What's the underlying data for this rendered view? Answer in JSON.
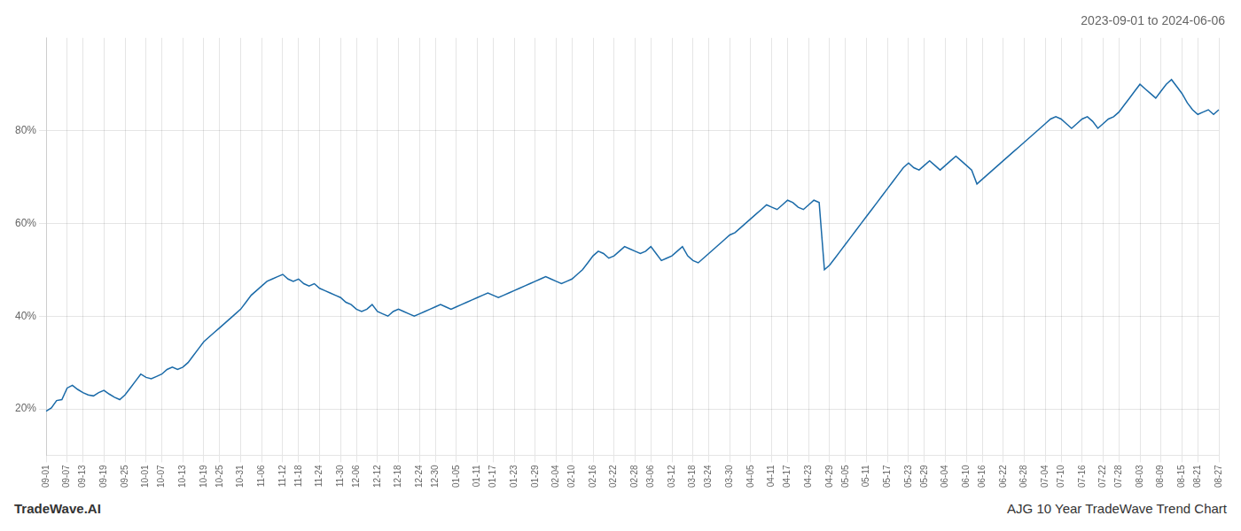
{
  "chart_data": {
    "type": "line",
    "title": "2023-09-01 to 2024-06-06",
    "annotations": [
      "TradeWave.AI",
      "AJG 10 Year TradeWave Trend Chart"
    ],
    "categories": [
      "09-01",
      null,
      null,
      null,
      "09-07",
      null,
      null,
      "09-13",
      null,
      null,
      null,
      "09-19",
      null,
      null,
      null,
      "09-25",
      null,
      null,
      null,
      "10-01",
      null,
      null,
      "10-07",
      null,
      null,
      null,
      "10-13",
      null,
      null,
      null,
      "10-19",
      null,
      null,
      "10-25",
      null,
      null,
      null,
      "10-31",
      null,
      null,
      null,
      "11-06",
      null,
      null,
      null,
      "11-12",
      null,
      null,
      "11-18",
      null,
      null,
      null,
      "11-24",
      null,
      null,
      null,
      "11-30",
      null,
      null,
      "12-06",
      null,
      null,
      null,
      "12-12",
      null,
      null,
      null,
      "12-18",
      null,
      null,
      null,
      "12-24",
      null,
      null,
      "12-30",
      null,
      null,
      null,
      "01-05",
      null,
      null,
      null,
      "01-11",
      null,
      null,
      "01-17",
      null,
      null,
      null,
      "01-23",
      null,
      null,
      null,
      "01-29",
      null,
      null,
      null,
      "02-04",
      null,
      null,
      "02-10",
      null,
      null,
      null,
      "02-16",
      null,
      null,
      null,
      "02-22",
      null,
      null,
      null,
      "02-28",
      null,
      null,
      "03-06",
      null,
      null,
      null,
      "03-12",
      null,
      null,
      null,
      "03-18",
      null,
      null,
      "03-24",
      null,
      null,
      null,
      "03-30",
      null,
      null,
      null,
      "04-05",
      null,
      null,
      null,
      "04-11",
      null,
      null,
      "04-17",
      null,
      null,
      null,
      "04-23",
      null,
      null,
      null,
      "04-29",
      null,
      null,
      "05-05",
      null,
      null,
      null,
      "05-11",
      null,
      null,
      null,
      "05-17",
      null,
      null,
      null,
      "05-23",
      null,
      null,
      "05-29",
      null,
      null,
      null,
      "06-04",
      null,
      null,
      null,
      "06-10",
      null,
      null,
      "06-16",
      null,
      null,
      null,
      "06-22",
      null,
      null,
      null,
      "06-28",
      null,
      null,
      null,
      "07-04",
      null,
      null,
      "07-10",
      null,
      null,
      null,
      "07-16",
      null,
      null,
      null,
      "07-22",
      null,
      null,
      "07-28",
      null,
      null,
      null,
      "08-03",
      null,
      null,
      null,
      "08-09",
      null,
      null,
      null,
      "08-15",
      null,
      null,
      "08-21",
      null,
      null,
      null,
      "08-27"
    ],
    "values": [
      19.5,
      20.2,
      21.8,
      22.0,
      24.5,
      25.1,
      24.2,
      23.5,
      23.0,
      22.8,
      23.5,
      24.0,
      23.2,
      22.5,
      22.0,
      23.0,
      24.5,
      26.0,
      27.5,
      26.8,
      26.5,
      27.0,
      27.5,
      28.5,
      29.0,
      28.5,
      29.0,
      30.0,
      31.5,
      33.0,
      34.5,
      35.5,
      36.5,
      37.5,
      38.5,
      39.5,
      40.5,
      41.5,
      43.0,
      44.5,
      45.5,
      46.5,
      47.5,
      48.0,
      48.5,
      49.0,
      48.0,
      47.5,
      48.0,
      47.0,
      46.5,
      47.0,
      46.0,
      45.5,
      45.0,
      44.5,
      44.0,
      43.0,
      42.5,
      41.5,
      41.0,
      41.5,
      42.5,
      41.0,
      40.5,
      40.0,
      41.0,
      41.5,
      41.0,
      40.5,
      40.0,
      40.5,
      41.0,
      41.5,
      42.0,
      42.5,
      42.0,
      41.5,
      42.0,
      42.5,
      43.0,
      43.5,
      44.0,
      44.5,
      45.0,
      44.5,
      44.0,
      44.5,
      45.0,
      45.5,
      46.0,
      46.5,
      47.0,
      47.5,
      48.0,
      48.5,
      48.0,
      47.5,
      47.0,
      47.5,
      48.0,
      49.0,
      50.0,
      51.5,
      53.0,
      54.0,
      53.5,
      52.5,
      53.0,
      54.0,
      55.0,
      54.5,
      54.0,
      53.5,
      54.0,
      55.0,
      53.5,
      52.0,
      52.5,
      53.0,
      54.0,
      55.0,
      53.0,
      52.0,
      51.5,
      52.5,
      53.5,
      54.5,
      55.5,
      56.5,
      57.5,
      58.0,
      59.0,
      60.0,
      61.0,
      62.0,
      63.0,
      64.0,
      63.5,
      63.0,
      64.0,
      65.0,
      64.5,
      63.5,
      63.0,
      64.0,
      65.0,
      64.5,
      50.0,
      51.0,
      52.5,
      54.0,
      55.5,
      57.0,
      58.5,
      60.0,
      61.5,
      63.0,
      64.5,
      66.0,
      67.5,
      69.0,
      70.5,
      72.0,
      73.0,
      72.0,
      71.5,
      72.5,
      73.5,
      72.5,
      71.5,
      72.5,
      73.5,
      74.5,
      73.5,
      72.5,
      71.5,
      68.5,
      69.5,
      70.5,
      71.5,
      72.5,
      73.5,
      74.5,
      75.5,
      76.5,
      77.5,
      78.5,
      79.5,
      80.5,
      81.5,
      82.5,
      83.0,
      82.5,
      81.5,
      80.5,
      81.5,
      82.5,
      83.0,
      82.0,
      80.5,
      81.5,
      82.5,
      83.0,
      84.0,
      85.5,
      87.0,
      88.5,
      90.0,
      89.0,
      88.0,
      87.0,
      88.5,
      90.0,
      91.0,
      89.5,
      88.0,
      86.0,
      84.5,
      83.5,
      84.0,
      84.5,
      83.5,
      84.5
    ],
    "color": "#1a6aa8",
    "ylim": [
      10,
      100
    ],
    "yticks": [
      {
        "value": 20,
        "label": "20%"
      },
      {
        "value": 40,
        "label": "40%"
      },
      {
        "value": 60,
        "label": "60%"
      },
      {
        "value": 80,
        "label": "80%"
      }
    ],
    "grid": true
  }
}
